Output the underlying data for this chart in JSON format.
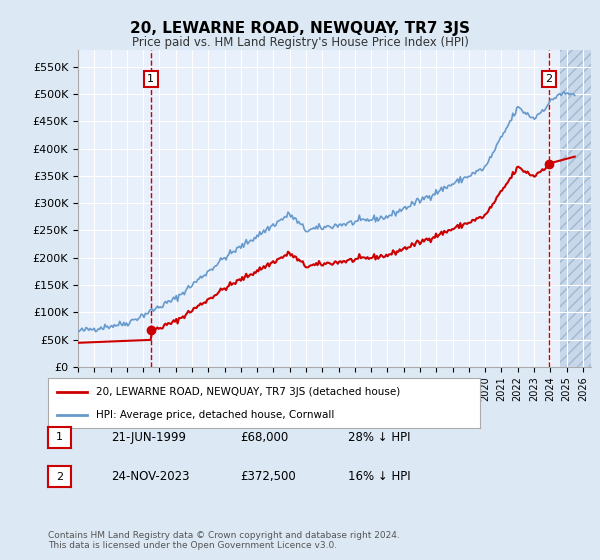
{
  "title": "20, LEWARNE ROAD, NEWQUAY, TR7 3JS",
  "subtitle": "Price paid vs. HM Land Registry's House Price Index (HPI)",
  "legend_line1": "20, LEWARNE ROAD, NEWQUAY, TR7 3JS (detached house)",
  "legend_line2": "HPI: Average price, detached house, Cornwall",
  "sale1_label": "1",
  "sale1_date": "21-JUN-1999",
  "sale1_price": "£68,000",
  "sale1_hpi": "28% ↓ HPI",
  "sale2_label": "2",
  "sale2_date": "24-NOV-2023",
  "sale2_price": "£372,500",
  "sale2_hpi": "16% ↓ HPI",
  "footer": "Contains HM Land Registry data © Crown copyright and database right 2024.\nThis data is licensed under the Open Government Licence v3.0.",
  "bg_color": "#dce9f5",
  "plot_bg_color": "#e8f0fb",
  "red_color": "#cc0000",
  "blue_color": "#6699cc",
  "ylim": [
    0,
    580000
  ],
  "xlim_start": 1995.0,
  "xlim_end": 2026.5,
  "sale1_x": 1999.47,
  "sale1_y": 68000,
  "sale2_x": 2023.9,
  "sale2_y": 372500
}
